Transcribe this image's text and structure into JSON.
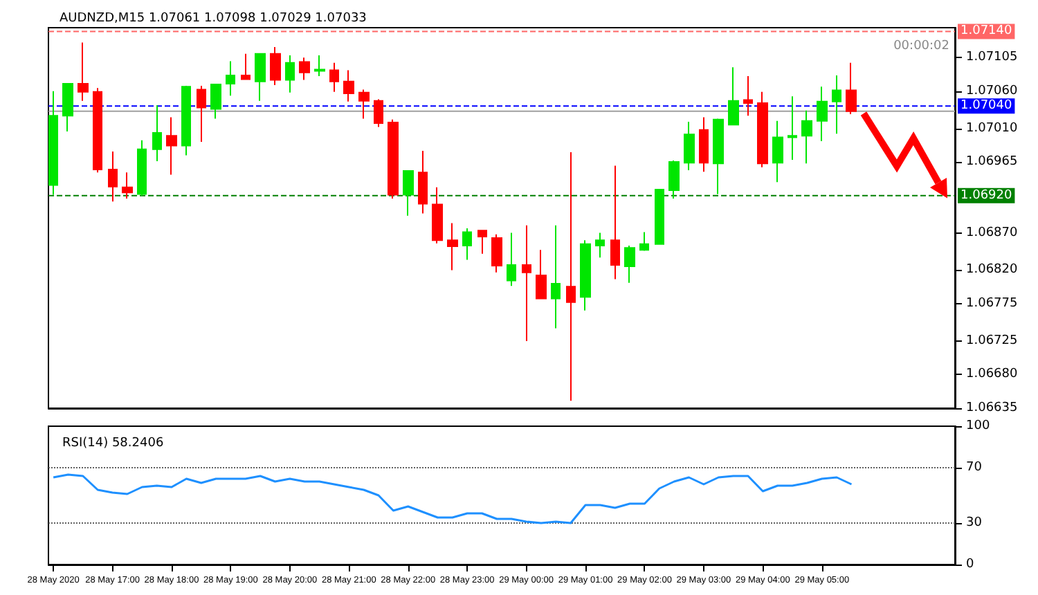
{
  "chart_data": [
    {
      "type": "candlestick",
      "title": "AUDNZD,M15 1.07061 1.07098 1.07029 1.07033",
      "annotations": [
        "00:00:02"
      ],
      "tick_labels": "y",
      "x": [
        "2020-05-28T16:00",
        "2020-05-28T16:15",
        "2020-05-28T16:30",
        "2020-05-28T16:45",
        "2020-05-28T17:00",
        "2020-05-28T17:15",
        "2020-05-28T17:30",
        "2020-05-28T17:45",
        "2020-05-28T18:00",
        "2020-05-28T18:15",
        "2020-05-28T18:30",
        "2020-05-28T18:45",
        "2020-05-28T19:00",
        "2020-05-28T19:15",
        "2020-05-28T19:30",
        "2020-05-28T19:45",
        "2020-05-28T20:00",
        "2020-05-28T20:15",
        "2020-05-28T20:30",
        "2020-05-28T20:45",
        "2020-05-28T21:00",
        "2020-05-28T21:15",
        "2020-05-28T21:30",
        "2020-05-28T21:45",
        "2020-05-28T22:00",
        "2020-05-28T22:15",
        "2020-05-28T22:30",
        "2020-05-28T22:45",
        "2020-05-28T23:00",
        "2020-05-28T23:15",
        "2020-05-28T23:30",
        "2020-05-28T23:45",
        "2020-05-29T00:00",
        "2020-05-29T00:15",
        "2020-05-29T00:30",
        "2020-05-29T00:45",
        "2020-05-29T01:00",
        "2020-05-29T01:15",
        "2020-05-29T01:30",
        "2020-05-29T01:45",
        "2020-05-29T02:00",
        "2020-05-29T02:15",
        "2020-05-29T02:30",
        "2020-05-29T02:45",
        "2020-05-29T03:00",
        "2020-05-29T03:15",
        "2020-05-29T03:30",
        "2020-05-29T03:45",
        "2020-05-29T04:00",
        "2020-05-29T04:15",
        "2020-05-29T04:30",
        "2020-05-29T04:45",
        "2020-05-29T05:00",
        "2020-05-29T05:15",
        "2020-05-29T05:30"
      ],
      "ohlc": [
        [
          1.06934,
          1.0706,
          1.06921,
          1.07027
        ],
        [
          1.07027,
          1.0707,
          1.07006,
          1.0707
        ],
        [
          1.0707,
          1.07125,
          1.07047,
          1.07059
        ],
        [
          1.07059,
          1.07064,
          1.06951,
          1.06955
        ],
        [
          1.06955,
          1.06979,
          1.06912,
          1.06932
        ],
        [
          1.06931,
          1.06951,
          1.06916,
          1.06924
        ],
        [
          1.06922,
          1.06994,
          1.0692,
          1.06982
        ],
        [
          1.06982,
          1.07041,
          1.06966,
          1.07004
        ],
        [
          1.07,
          1.07025,
          1.06948,
          1.06987
        ],
        [
          1.06987,
          1.07067,
          1.06974,
          1.07066
        ],
        [
          1.07062,
          1.07067,
          1.06992,
          1.07038
        ],
        [
          1.07036,
          1.0707,
          1.07023,
          1.07069
        ],
        [
          1.0707,
          1.071,
          1.07054,
          1.07081
        ],
        [
          1.07081,
          1.0711,
          1.07075,
          1.07076
        ],
        [
          1.07073,
          1.07111,
          1.07047,
          1.0711
        ],
        [
          1.0711,
          1.07119,
          1.07068,
          1.07075
        ],
        [
          1.07075,
          1.07108,
          1.07058,
          1.07098
        ],
        [
          1.07099,
          1.07105,
          1.07075,
          1.07085
        ],
        [
          1.07087,
          1.07108,
          1.0708,
          1.07089
        ],
        [
          1.07088,
          1.07098,
          1.07059,
          1.07073
        ],
        [
          1.07073,
          1.07088,
          1.07046,
          1.07057
        ],
        [
          1.07058,
          1.07062,
          1.07023,
          1.07047
        ],
        [
          1.07047,
          1.07049,
          1.07012,
          1.07017
        ],
        [
          1.07018,
          1.07022,
          1.06916,
          1.06921
        ],
        [
          1.06921,
          1.06953,
          1.06893,
          1.06953
        ],
        [
          1.06951,
          1.0698,
          1.06896,
          1.06909
        ],
        [
          1.06908,
          1.06931,
          1.06856,
          1.0686
        ],
        [
          1.0686,
          1.06883,
          1.0682,
          1.06852
        ],
        [
          1.06853,
          1.06876,
          1.06834,
          1.06871
        ],
        [
          1.06873,
          1.06874,
          1.06842,
          1.06865
        ],
        [
          1.06863,
          1.06868,
          1.06817,
          1.06826
        ],
        [
          1.06806,
          1.0687,
          1.06799,
          1.06827
        ],
        [
          1.06827,
          1.0688,
          1.06725,
          1.06817
        ],
        [
          1.06813,
          1.06847,
          1.06781,
          1.06782
        ],
        [
          1.06782,
          1.0688,
          1.06742,
          1.06802
        ],
        [
          1.06798,
          1.06978,
          1.06645,
          1.06777
        ],
        [
          1.06784,
          1.0686,
          1.06766,
          1.06855
        ],
        [
          1.06853,
          1.0687,
          1.06837,
          1.0686
        ],
        [
          1.0686,
          1.0696,
          1.06808,
          1.06827
        ],
        [
          1.06825,
          1.06853,
          1.06803,
          1.0685
        ],
        [
          1.06847,
          1.06871,
          1.06846,
          1.06855
        ],
        [
          1.06855,
          1.06929,
          1.06854,
          1.06928
        ],
        [
          1.06927,
          1.06967,
          1.06916,
          1.06965
        ],
        [
          1.06964,
          1.07019,
          1.06954,
          1.07002
        ],
        [
          1.07008,
          1.07025,
          1.06952,
          1.06964
        ],
        [
          1.06963,
          1.07023,
          1.06922,
          1.07022
        ],
        [
          1.07015,
          1.07092,
          1.07014,
          1.07047
        ],
        [
          1.07048,
          1.0708,
          1.07027,
          1.07044
        ],
        [
          1.07044,
          1.07059,
          1.06958,
          1.06963
        ],
        [
          1.06964,
          1.0702,
          1.06938,
          1.06998
        ],
        [
          1.06998,
          1.07053,
          1.06968,
          1.07
        ],
        [
          1.07,
          1.07034,
          1.06963,
          1.0702
        ],
        [
          1.0702,
          1.07066,
          1.06993,
          1.07046
        ],
        [
          1.07046,
          1.07081,
          1.07003,
          1.07061
        ],
        [
          1.07061,
          1.07098,
          1.07029,
          1.07033
        ]
      ],
      "colors": [
        "#00e600",
        "#00e600",
        "#ff0000",
        "#ff0000",
        "#ff0000",
        "#ff0000",
        "#00e600",
        "#00e600",
        "#ff0000",
        "#00e600",
        "#ff0000",
        "#00e600",
        "#00e600",
        "#ff0000",
        "#00e600",
        "#ff0000",
        "#00e600",
        "#ff0000",
        "#00e600",
        "#ff0000",
        "#ff0000",
        "#ff0000",
        "#ff0000",
        "#ff0000",
        "#00e600",
        "#ff0000",
        "#ff0000",
        "#ff0000",
        "#00e600",
        "#ff0000",
        "#ff0000",
        "#00e600",
        "#ff0000",
        "#ff0000",
        "#00e600",
        "#ff0000",
        "#00e600",
        "#00e600",
        "#ff0000",
        "#00e600",
        "#00e600",
        "#00e600",
        "#00e600",
        "#00e600",
        "#ff0000",
        "#00e600",
        "#00e600",
        "#ff0000",
        "#ff0000",
        "#00e600",
        "#00e600",
        "#00e600",
        "#00e600",
        "#00e600",
        "#ff0000"
      ],
      "xlim": [
        "2020-05-28T15:55",
        "2020-05-29T07:15"
      ],
      "ylim": [
        1.06635,
        1.07145
      ],
      "yticks": [
        {
          "value": 1.07105,
          "label": "1.07105"
        },
        {
          "value": 1.0706,
          "label": "1.07060"
        },
        {
          "value": 1.0701,
          "label": "1.07010"
        },
        {
          "value": 1.06965,
          "label": "1.06965"
        },
        {
          "value": 1.0687,
          "label": "1.06870"
        },
        {
          "value": 1.0682,
          "label": "1.06820"
        },
        {
          "value": 1.06775,
          "label": "1.06775"
        },
        {
          "value": 1.06725,
          "label": "1.06725"
        },
        {
          "value": 1.0668,
          "label": "1.06680"
        },
        {
          "value": 1.06635,
          "label": "1.06635"
        }
      ],
      "ref_lines": [
        {
          "axis": "y",
          "value": 1.0714,
          "label": "1.07140",
          "color": "#ff6666",
          "line_style": "dashed"
        },
        {
          "axis": "y",
          "value": 1.0704,
          "label": "1.07040",
          "color": "#0000ff",
          "line_style": "dashed"
        },
        {
          "axis": "y",
          "value": 1.07033,
          "label": null,
          "color": "#a0a0a0",
          "line_style": "solid"
        },
        {
          "axis": "y",
          "value": 1.0692,
          "label": "1.06920",
          "color": "#008000",
          "line_style": "dashed"
        }
      ]
    },
    {
      "type": "line",
      "title": "RSI(14) 58.2406",
      "x": [
        "2020-05-28T16:00",
        "2020-05-28T16:15",
        "2020-05-28T16:30",
        "2020-05-28T16:45",
        "2020-05-28T17:00",
        "2020-05-28T17:15",
        "2020-05-28T17:30",
        "2020-05-28T17:45",
        "2020-05-28T18:00",
        "2020-05-28T18:15",
        "2020-05-28T18:30",
        "2020-05-28T18:45",
        "2020-05-28T19:00",
        "2020-05-28T19:15",
        "2020-05-28T19:30",
        "2020-05-28T19:45",
        "2020-05-28T20:00",
        "2020-05-28T20:15",
        "2020-05-28T20:30",
        "2020-05-28T20:45",
        "2020-05-28T21:00",
        "2020-05-28T21:15",
        "2020-05-28T21:30",
        "2020-05-28T21:45",
        "2020-05-28T22:00",
        "2020-05-28T22:15",
        "2020-05-28T22:30",
        "2020-05-28T22:45",
        "2020-05-28T23:00",
        "2020-05-28T23:15",
        "2020-05-28T23:30",
        "2020-05-28T23:45",
        "2020-05-29T00:00",
        "2020-05-29T00:15",
        "2020-05-29T00:30",
        "2020-05-29T00:45",
        "2020-05-29T01:00",
        "2020-05-29T01:15",
        "2020-05-29T01:30",
        "2020-05-29T01:45",
        "2020-05-29T02:00",
        "2020-05-29T02:15",
        "2020-05-29T02:30",
        "2020-05-29T02:45",
        "2020-05-29T03:00",
        "2020-05-29T03:15",
        "2020-05-29T03:30",
        "2020-05-29T03:45",
        "2020-05-29T04:00",
        "2020-05-29T04:15",
        "2020-05-29T04:30",
        "2020-05-29T04:45",
        "2020-05-29T05:00",
        "2020-05-29T05:15",
        "2020-05-29T05:30"
      ],
      "series": [
        {
          "color": "#1e90ff",
          "values": [
            63,
            65,
            64,
            54,
            52,
            51,
            56,
            57,
            56,
            62,
            59,
            62,
            62,
            62,
            64,
            60,
            62,
            60,
            60,
            58,
            56,
            54,
            50,
            39,
            42,
            38,
            34,
            34,
            37,
            37,
            33,
            33,
            31,
            30,
            31,
            30,
            43,
            43,
            41,
            44,
            44,
            55,
            60,
            63,
            58,
            63,
            64,
            64,
            53,
            57,
            57,
            59,
            62,
            63,
            58
          ]
        }
      ],
      "xlim": [
        "2020-05-28T15:55",
        "2020-05-29T07:15"
      ],
      "xticks": [
        {
          "value": "2020-05-28T16:00",
          "label": "28 May 2020"
        },
        {
          "value": "2020-05-28T17:00",
          "label": "28 May 17:00"
        },
        {
          "value": "2020-05-28T18:00",
          "label": "28 May 18:00"
        },
        {
          "value": "2020-05-28T19:00",
          "label": "28 May 19:00"
        },
        {
          "value": "2020-05-28T20:00",
          "label": "28 May 20:00"
        },
        {
          "value": "2020-05-28T21:00",
          "label": "28 May 21:00"
        },
        {
          "value": "2020-05-28T22:00",
          "label": "28 May 22:00"
        },
        {
          "value": "2020-05-28T23:00",
          "label": "28 May 23:00"
        },
        {
          "value": "2020-05-29T00:00",
          "label": "29 May 00:00"
        },
        {
          "value": "2020-05-29T01:00",
          "label": "29 May 01:00"
        },
        {
          "value": "2020-05-29T02:00",
          "label": "29 May 02:00"
        },
        {
          "value": "2020-05-29T03:00",
          "label": "29 May 03:00"
        },
        {
          "value": "2020-05-29T04:00",
          "label": "29 May 04:00"
        },
        {
          "value": "2020-05-29T05:00",
          "label": "29 May 05:00"
        }
      ],
      "ylim": [
        0,
        100
      ],
      "yticks": [
        0,
        30,
        70,
        100
      ],
      "ref_lines": [
        {
          "axis": "y",
          "value": 70,
          "color": "#606060",
          "line_style": "dotted"
        },
        {
          "axis": "y",
          "value": 30,
          "color": "#606060",
          "line_style": "dotted"
        }
      ]
    }
  ]
}
